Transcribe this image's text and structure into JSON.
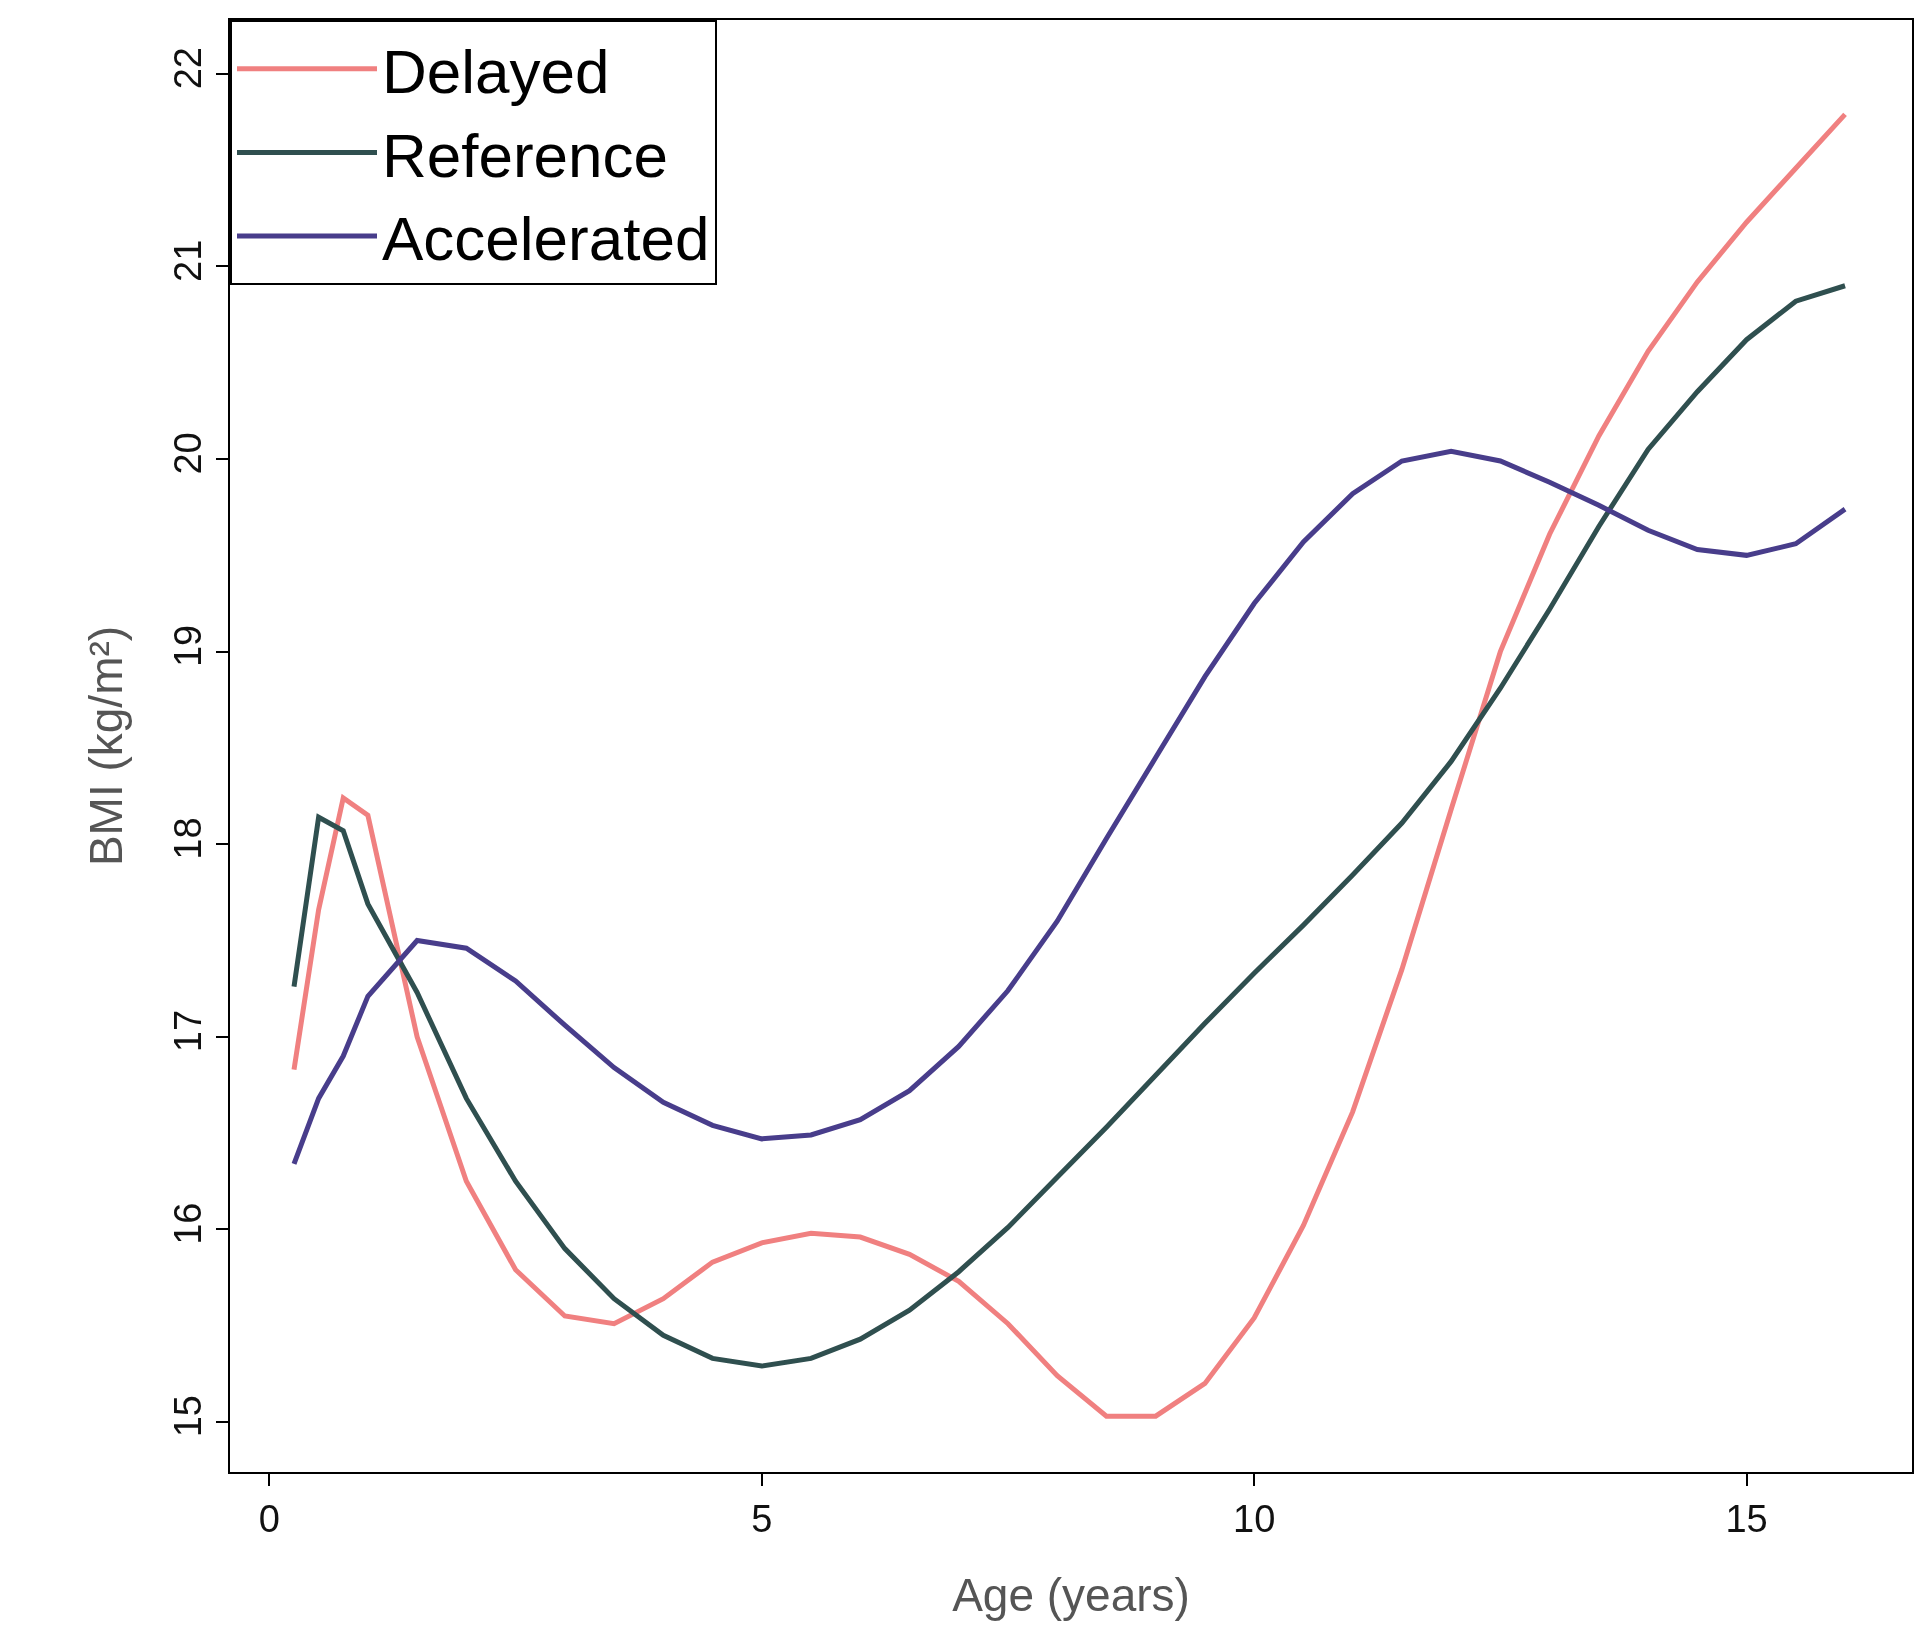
{
  "chart_data": {
    "type": "line",
    "xlabel": "Age (years)",
    "ylabel": "BMI (kg/m²)",
    "x": [
      0.25,
      0.5,
      0.75,
      1,
      1.5,
      2,
      2.5,
      3,
      3.5,
      4,
      4.5,
      5,
      5.5,
      6,
      6.5,
      7,
      7.5,
      8,
      8.5,
      9,
      9.5,
      10,
      10.5,
      11,
      11.5,
      12,
      12.5,
      13,
      13.5,
      14,
      14.5,
      15,
      15.5,
      16
    ],
    "series": [
      {
        "name": "Delayed",
        "color": "#f08080",
        "values": [
          16.83,
          17.66,
          18.24,
          18.15,
          17.0,
          16.25,
          15.79,
          15.55,
          15.51,
          15.64,
          15.83,
          15.93,
          15.98,
          15.96,
          15.87,
          15.73,
          15.51,
          15.24,
          15.03,
          15.03,
          15.2,
          15.54,
          16.02,
          16.61,
          17.35,
          18.18,
          19.0,
          19.61,
          20.12,
          20.56,
          20.92,
          21.23,
          21.51,
          21.79
        ]
      },
      {
        "name": "Reference",
        "color": "#2f4f4f",
        "values": [
          17.26,
          18.14,
          18.07,
          17.69,
          17.23,
          16.68,
          16.25,
          15.9,
          15.64,
          15.45,
          15.33,
          15.29,
          15.33,
          15.43,
          15.58,
          15.78,
          16.01,
          16.27,
          16.53,
          16.8,
          17.07,
          17.33,
          17.58,
          17.84,
          18.11,
          18.43,
          18.81,
          19.22,
          19.65,
          20.05,
          20.35,
          20.62,
          20.82,
          20.9
        ]
      },
      {
        "name": "Accelerated",
        "color": "#483d8b",
        "values": [
          16.34,
          16.68,
          16.9,
          17.21,
          17.5,
          17.46,
          17.29,
          17.06,
          16.84,
          16.66,
          16.54,
          16.47,
          16.49,
          16.57,
          16.72,
          16.95,
          17.24,
          17.6,
          18.03,
          18.45,
          18.87,
          19.25,
          19.57,
          19.82,
          19.99,
          20.04,
          19.99,
          19.88,
          19.76,
          19.63,
          19.53,
          19.5,
          19.56,
          19.74
        ]
      }
    ],
    "xlim": [
      -0.4,
      16.68
    ],
    "xticks": [
      0,
      5,
      10,
      15
    ],
    "ylim": [
      14.74,
      22.28
    ],
    "yticks": [
      15,
      16,
      17,
      18,
      19,
      20,
      21,
      22
    ],
    "legend": "top left",
    "marker": "none",
    "line_style": "solid"
  }
}
